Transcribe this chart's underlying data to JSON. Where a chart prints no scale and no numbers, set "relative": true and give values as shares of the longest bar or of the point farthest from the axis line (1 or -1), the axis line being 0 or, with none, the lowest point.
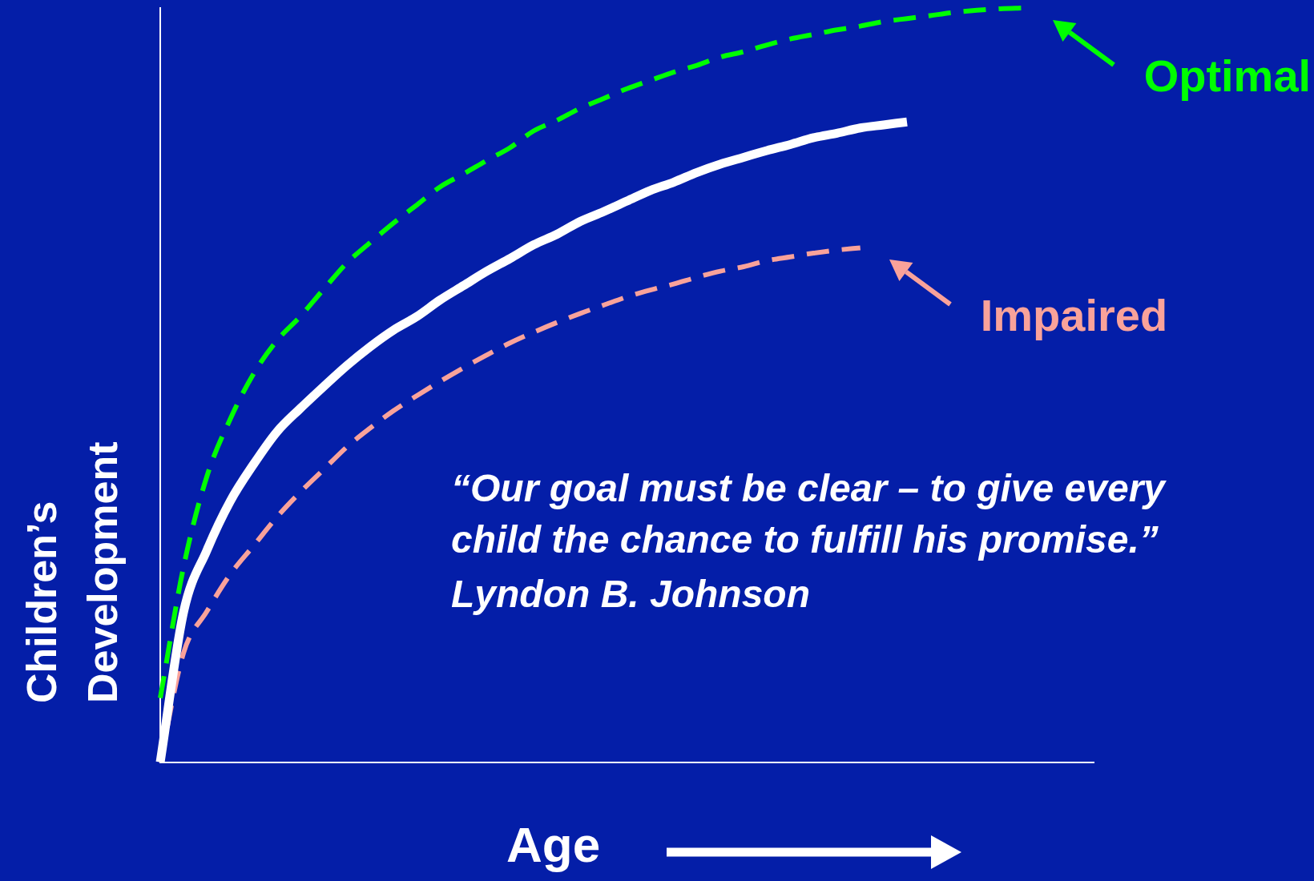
{
  "chart_data": {
    "type": "line",
    "relative": true,
    "xlabel": "Age",
    "ylabel": "Children’s Development",
    "annotations": [
      "“Our goal must be clear – to give every child the chance to fulfill his promise.”",
      "Lyndon B. Johnson"
    ],
    "categories": [
      null,
      null,
      null,
      null,
      null,
      null,
      null,
      null,
      null,
      null,
      null,
      null,
      null,
      null,
      null,
      null,
      null,
      null,
      null,
      null,
      null,
      null,
      null,
      null,
      null,
      null,
      null,
      null,
      null,
      null,
      null,
      null,
      null,
      null,
      null,
      null,
      null,
      null,
      null,
      null,
      null
    ],
    "grid": false,
    "marker": "none",
    "legend": "right",
    "series": [
      {
        "name": "Optimal",
        "color": "#00ff00",
        "line_style": "dashed",
        "values": [
          0.085,
          0.259,
          0.379,
          0.455,
          0.515,
          0.559,
          0.591,
          0.627,
          0.662,
          0.689,
          0.715,
          0.739,
          0.763,
          0.78,
          0.798,
          0.815,
          0.837,
          0.851,
          0.867,
          0.88,
          0.893,
          0.904,
          0.915,
          0.924,
          0.935,
          0.942,
          0.951,
          0.959,
          0.965,
          0.971,
          0.976,
          0.982,
          0.986,
          0.99,
          0.994,
          0.997,
          0.999,
          1,
          null,
          null,
          null
        ]
      },
      {
        "color": "#ffffff",
        "line_style": "solid",
        "values": [
          0,
          0.199,
          0.281,
          0.346,
          0.395,
          0.438,
          0.469,
          0.498,
          0.526,
          0.551,
          0.573,
          0.591,
          0.613,
          0.632,
          0.651,
          0.668,
          0.686,
          0.7,
          0.717,
          0.73,
          0.744,
          0.758,
          0.769,
          0.782,
          0.793,
          0.802,
          0.811,
          0.819,
          0.828,
          0.834,
          0.841,
          0.845,
          0.849,
          null,
          null,
          null,
          null,
          null,
          null,
          null,
          null
        ]
      },
      {
        "name": "Impaired",
        "color": "#f9a29a",
        "line_style": "dashed",
        "values": [
          0,
          0.145,
          0.2,
          0.249,
          0.287,
          0.325,
          0.358,
          0.388,
          0.418,
          0.443,
          0.466,
          0.486,
          0.505,
          0.523,
          0.54,
          0.556,
          0.57,
          0.583,
          0.595,
          0.606,
          0.617,
          0.626,
          0.634,
          0.643,
          0.651,
          0.657,
          0.665,
          0.67,
          0.675,
          0.679,
          0.682,
          null,
          null,
          null,
          null,
          null,
          null,
          null,
          null,
          null,
          null
        ]
      }
    ]
  }
}
